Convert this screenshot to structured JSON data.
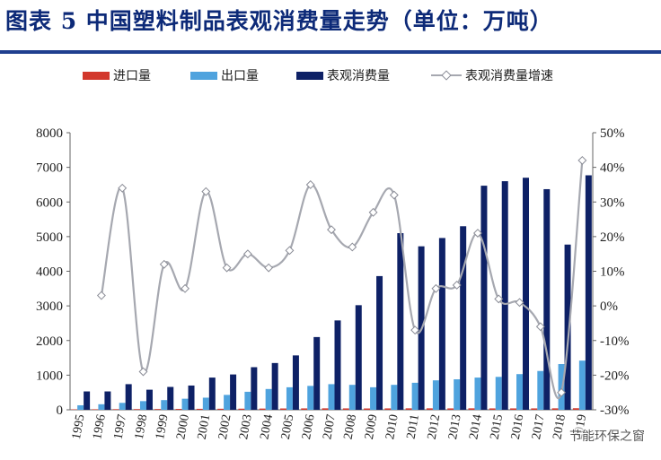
{
  "title": "图表 5   中国塑料制品表观消费量走势（单位：万吨）",
  "watermark": "节能环保之窗",
  "colors": {
    "import": "#d2382c",
    "export": "#4fa3de",
    "consumption": "#0e2166",
    "growth": "#a6a8b0",
    "title": "#0d2a78"
  },
  "chart_data": {
    "type": "bar",
    "categories": [
      "1995",
      "1996",
      "1997",
      "1998",
      "1999",
      "2000",
      "2001",
      "2002",
      "2003",
      "2004",
      "2005",
      "2006",
      "2007",
      "2008",
      "2009",
      "2010",
      "2011",
      "2012",
      "2013",
      "2014",
      "2015",
      "2016",
      "2017",
      "2018",
      "2019"
    ],
    "x_tick_labels": [
      "1995",
      "1996",
      "1997",
      "1998",
      "1999",
      "2000",
      "2001",
      "2002",
      "2003",
      "2004",
      "2005",
      "2006",
      "2007",
      "2008",
      "2009",
      "2010",
      "2011",
      "2012",
      "2013",
      "2014",
      "2015",
      "2016",
      "2017",
      "2018",
      "2019"
    ],
    "series": [
      {
        "name": "进口量",
        "kind": "bar",
        "axis": "left",
        "values": [
          12,
          15,
          18,
          20,
          22,
          25,
          28,
          30,
          32,
          35,
          38,
          40,
          42,
          40,
          38,
          40,
          42,
          42,
          40,
          42,
          40,
          40,
          40,
          42,
          45
        ]
      },
      {
        "name": "出口量",
        "kind": "bar",
        "axis": "left",
        "values": [
          130,
          160,
          200,
          250,
          280,
          320,
          350,
          430,
          520,
          600,
          650,
          690,
          740,
          720,
          650,
          720,
          780,
          850,
          880,
          930,
          950,
          1030,
          1120,
          1320,
          1420
        ]
      },
      {
        "name": "表观消费量",
        "kind": "bar",
        "axis": "left",
        "values": [
          530,
          530,
          740,
          580,
          660,
          700,
          930,
          1020,
          1230,
          1350,
          1570,
          2100,
          2580,
          3020,
          3860,
          5100,
          4720,
          4960,
          5300,
          6470,
          6600,
          6700,
          6370,
          4770,
          6770
        ]
      },
      {
        "name": "表观消费量增速",
        "kind": "line",
        "axis": "right",
        "values": [
          null,
          3,
          34,
          -19,
          12,
          5,
          33,
          11,
          15,
          11,
          16,
          35,
          22,
          17,
          27,
          32,
          -7,
          5,
          6,
          21,
          2,
          1,
          -6,
          -25,
          42
        ]
      }
    ],
    "yleft": {
      "ticks": [
        "0",
        "1000",
        "2000",
        "3000",
        "4000",
        "5000",
        "6000",
        "7000",
        "8000"
      ],
      "min": 0,
      "max": 8000
    },
    "yright": {
      "ticks": [
        "-30%",
        "-20%",
        "-10%",
        "0%",
        "10%",
        "20%",
        "30%",
        "40%",
        "50%"
      ],
      "min": -30,
      "max": 50
    },
    "legend_position": "top"
  }
}
